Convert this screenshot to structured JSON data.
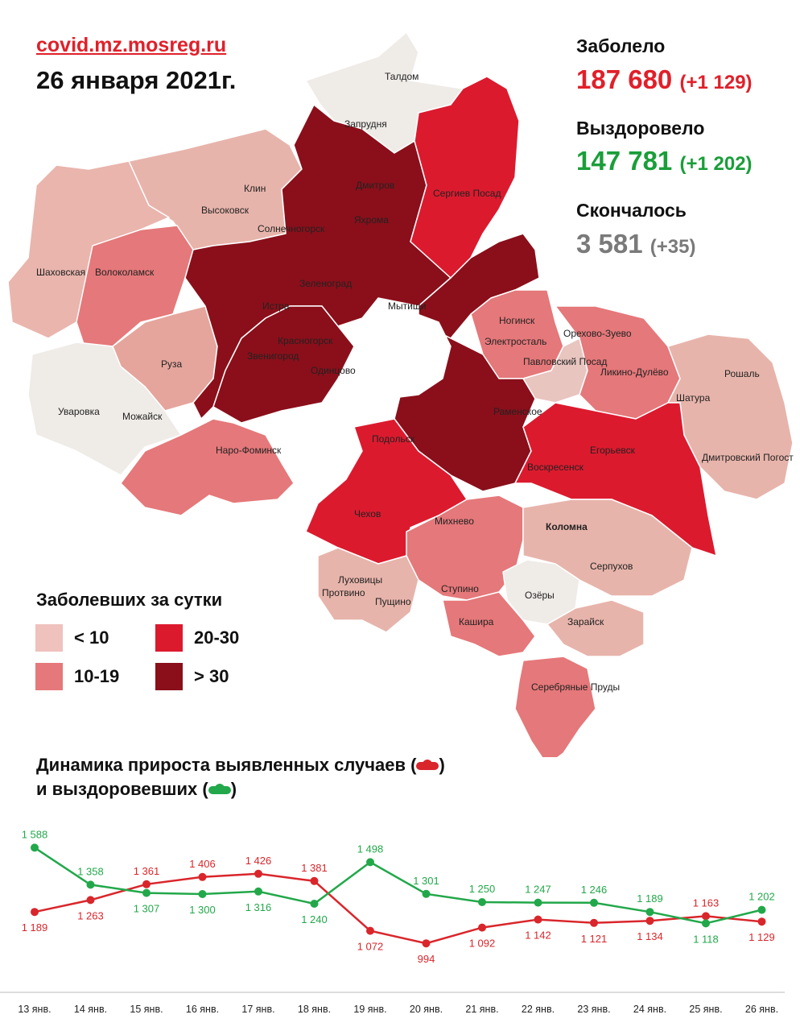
{
  "header": {
    "source": "covid.mz.mosreg.ru",
    "date": "26 января 2021г."
  },
  "stats": {
    "infected_label": "Заболело",
    "infected_value": "187 680",
    "infected_delta": "(+1 129)",
    "recovered_label": "Выздоровело",
    "recovered_value": "147 781",
    "recovered_delta": "(+1 202)",
    "deaths_label": "Скончалось",
    "deaths_value": "3 581",
    "deaths_delta": "(+35)",
    "colors": {
      "infected": "#e0202a",
      "recovered": "#1a9e3a",
      "deaths": "#7a7a7a"
    }
  },
  "legend": {
    "title": "Заболевших за сутки",
    "items": [
      {
        "label": "< 10",
        "color": "#efc2bd"
      },
      {
        "label": "10-19",
        "color": "#e5787a"
      },
      {
        "label": "20-30",
        "color": "#dc1a2e"
      },
      {
        "label": "> 30",
        "color": "#8a0f1a"
      }
    ]
  },
  "map": {
    "places": [
      "Талдом",
      "Запрудня",
      "Клин",
      "Высоковск",
      "Дмитров",
      "Сергиев Посад",
      "Яхрома",
      "Солнечногорск",
      "Шаховская",
      "Волоколамск",
      "Зеленоград",
      "Истра",
      "Мытищи",
      "Ногинск",
      "Красногорск",
      "Электросталь",
      "Орехово-Зуево",
      "Павловский Посад",
      "Звенигород",
      "Одинцово",
      "Руза",
      "Ликино-Дулёво",
      "Рошаль",
      "Уваровка",
      "Можайск",
      "Раменское",
      "Шатура",
      "Наро-Фоминск",
      "Подольск",
      "Егорьевск",
      "Воскресенск",
      "Дмитровский Погост",
      "Чехов",
      "Михнево",
      "Коломна",
      "Серпухов",
      "Луховицы",
      "Пущино",
      "Ступино",
      "Озёры",
      "Кашира",
      "Зарайск",
      "Серебряные Пруды",
      "Протвино"
    ]
  },
  "dynamics": {
    "title_line1": "Динамика прироста выявленных случаев (",
    "title_line1_end": ")",
    "title_line2": "и выздоровевших (",
    "title_line2_end": ")"
  },
  "chart_data": {
    "type": "line",
    "categories": [
      "13 янв.",
      "14 янв.",
      "15 янв.",
      "16 янв.",
      "17 янв.",
      "18 янв.",
      "19 янв.",
      "20 янв.",
      "21 янв.",
      "22 янв.",
      "23 янв.",
      "24 янв.",
      "25 янв.",
      "26 янв."
    ],
    "series": [
      {
        "key": "cases",
        "color": "#d9262b",
        "values": [
          1189,
          1263,
          1361,
          1406,
          1426,
          1381,
          1072,
          994,
          1092,
          1142,
          1121,
          1134,
          1163,
          1129
        ],
        "labels": [
          "1 189",
          "1 263",
          "1 361",
          "1 406",
          "1 426",
          "1 381",
          "1 072",
          "994",
          "1 092",
          "1 142",
          "1 121",
          "1 134",
          "1 163",
          "1 129"
        ]
      },
      {
        "key": "recovered",
        "color": "#22a84a",
        "values": [
          1588,
          1358,
          1307,
          1300,
          1316,
          1240,
          1498,
          1301,
          1250,
          1247,
          1246,
          1189,
          1118,
          1202
        ],
        "labels": [
          "1 588",
          "1 358",
          "1 307",
          "1 300",
          "1 316",
          "1 240",
          "1 498",
          "1 301",
          "1 250",
          "1 247",
          "1 246",
          "1 189",
          "1 118",
          "1 202"
        ]
      }
    ],
    "ylim": [
      950,
      1650
    ],
    "grid": false,
    "legend": "in-title"
  }
}
